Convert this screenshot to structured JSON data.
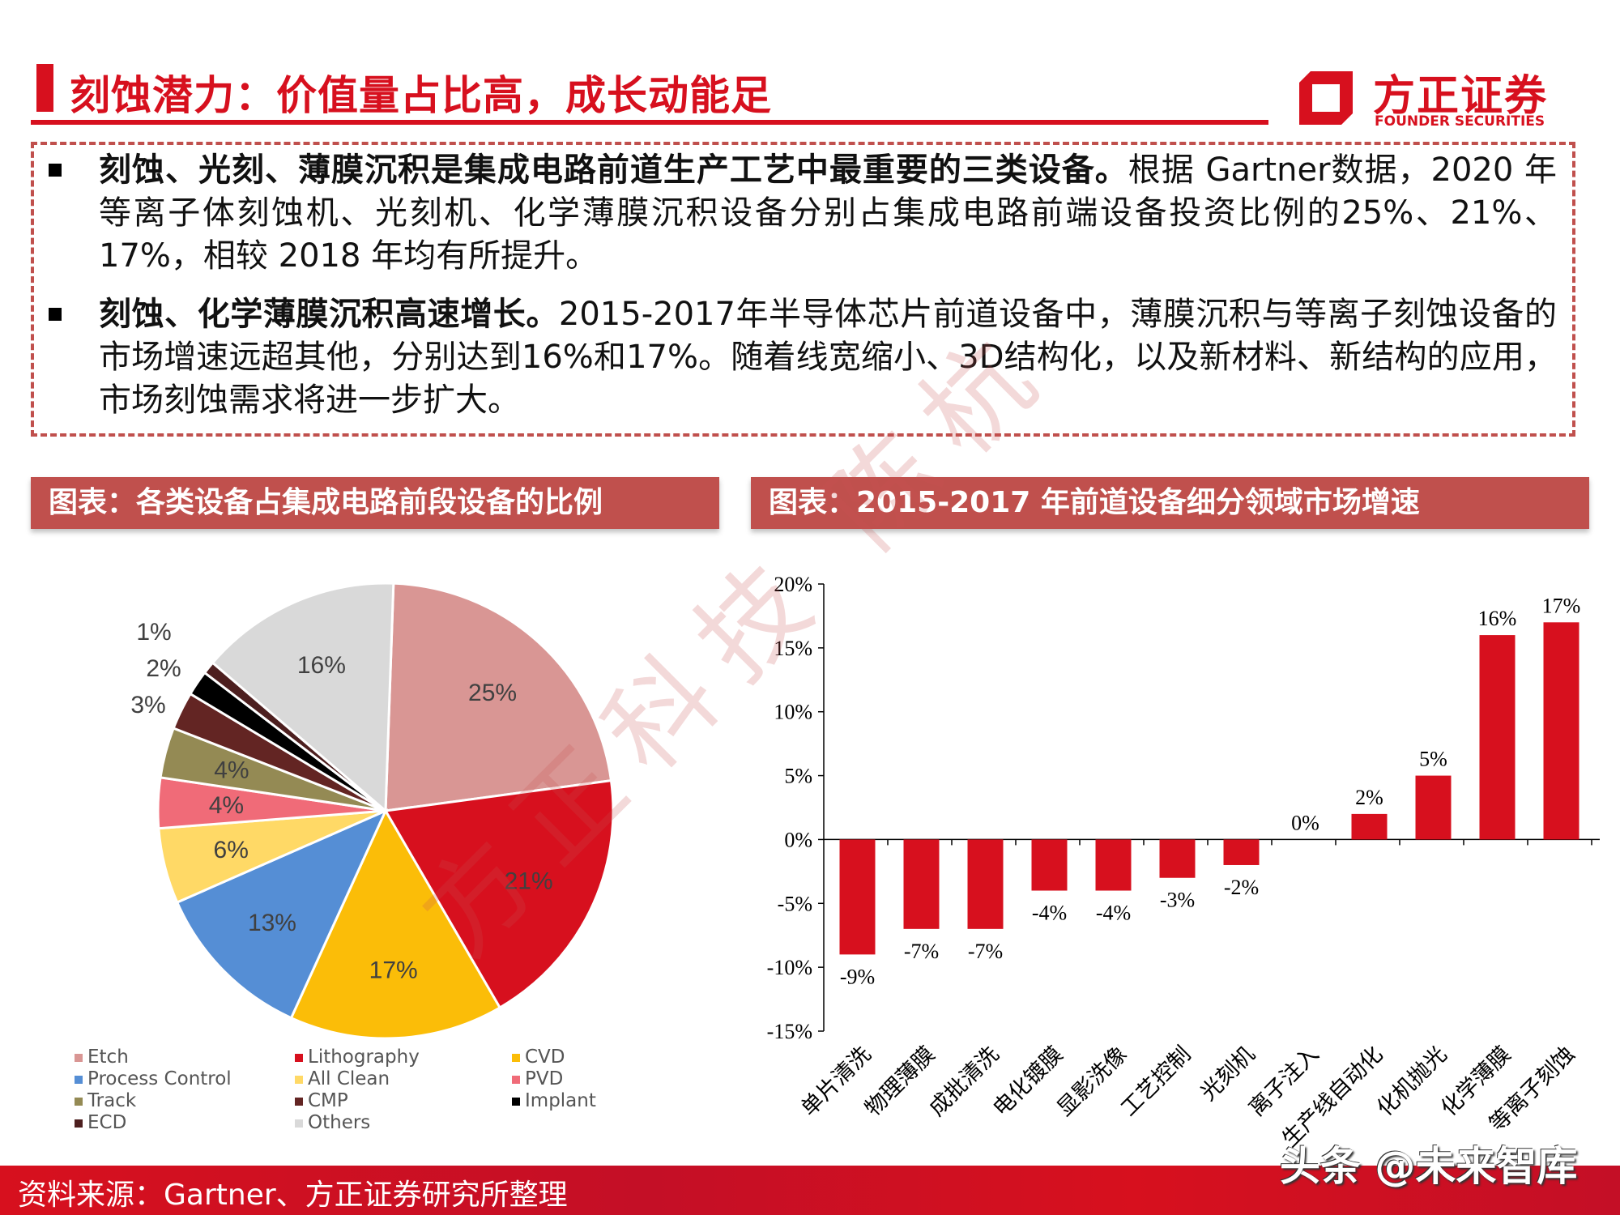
{
  "header": {
    "title": "刻蚀潜力：价值量占比高，成长动能足",
    "logo_cn": "方正证券",
    "logo_en": "FOUNDER SECURITIES",
    "accent_color": "#d7101e"
  },
  "bullets": [
    {
      "bold": "刻蚀、光刻、薄膜沉积是集成电路前道生产工艺中最重要的三类设备。",
      "text": "根据 Gartner数据，2020 年等离子体刻蚀机、光刻机、化学薄膜沉积设备分别占集成电路前端设备投资比例的25%、21%、17%，相较 2018 年均有所提升。"
    },
    {
      "bold": "刻蚀、化学薄膜沉积高速增长。",
      "text": "2015-2017年半导体芯片前道设备中，薄膜沉积与等离子刻蚀设备的市场增速远超其他，分别达到16%和17%。随着线宽缩小、3D结构化，以及新材料、新结构的应用，市场刻蚀需求将进一步扩大。"
    }
  ],
  "chart_data": [
    {
      "type": "pie",
      "header": "图表：各类设备占集成电路前段设备的比例",
      "slices": [
        {
          "name": "Etch",
          "value": 25,
          "label": "25%",
          "color": "#d99694"
        },
        {
          "name": "Lithography",
          "value": 21,
          "label": "21%",
          "color": "#d7101e"
        },
        {
          "name": "CVD",
          "value": 17,
          "label": "17%",
          "color": "#fbbd08"
        },
        {
          "name": "Process Control",
          "value": 13,
          "label": "13%",
          "color": "#558ed5"
        },
        {
          "name": "All Clean",
          "value": 6,
          "label": "6%",
          "color": "#ffd966"
        },
        {
          "name": "PVD",
          "value": 4,
          "label": "4%",
          "color": "#f06b78"
        },
        {
          "name": "Track",
          "value": 4,
          "label": "4%",
          "color": "#948a54"
        },
        {
          "name": "CMP",
          "value": 3,
          "label": "3%",
          "color": "#632523"
        },
        {
          "name": "Implant",
          "value": 2,
          "label": "2%",
          "color": "#000000"
        },
        {
          "name": "ECD",
          "value": 1,
          "label": "1%",
          "color": "#4d1f1f"
        },
        {
          "name": "Others",
          "value": 16,
          "label": "16%",
          "color": "#d9d9d9"
        }
      ],
      "legend": [
        "Etch",
        "Lithography",
        "CVD",
        "Process Control",
        "All Clean",
        "PVD",
        "Track",
        "CMP",
        "Implant",
        "ECD",
        "Others"
      ],
      "legend_placement": "bottom"
    },
    {
      "type": "bar",
      "header": "图表：2015-2017 年前道设备细分领域市场增速",
      "categories": [
        "单片清洗",
        "物理薄膜",
        "成批清洗",
        "电化镀膜",
        "显影洗像",
        "工艺控制",
        "光刻机",
        "离子注入",
        "生产线自动化",
        "化机抛光",
        "化学薄膜",
        "等离子刻蚀"
      ],
      "values": [
        -9,
        -7,
        -7,
        -4,
        -4,
        -3,
        -2,
        0,
        2,
        5,
        16,
        17
      ],
      "data_labels": [
        "-9%",
        "-7%",
        "-7%",
        "-4%",
        "-4%",
        "-3%",
        "-2%",
        "0%",
        "2%",
        "5%",
        "16%",
        "17%"
      ],
      "ylim": [
        -15,
        20
      ],
      "yticks": [
        "20%",
        "15%",
        "10%",
        "5%",
        "0%",
        "-5%",
        "-10%",
        "-15%"
      ],
      "ytick_values": [
        20,
        15,
        10,
        5,
        0,
        -5,
        -10,
        -15
      ],
      "bar_color": "#d7101e",
      "grid": false
    }
  ],
  "footer": {
    "source": "资料来源：Gartner、方正证券研究所整理"
  },
  "watermarks": {
    "diagonal": "方正科技 陈杭",
    "corner": "头条 @未来智库"
  }
}
